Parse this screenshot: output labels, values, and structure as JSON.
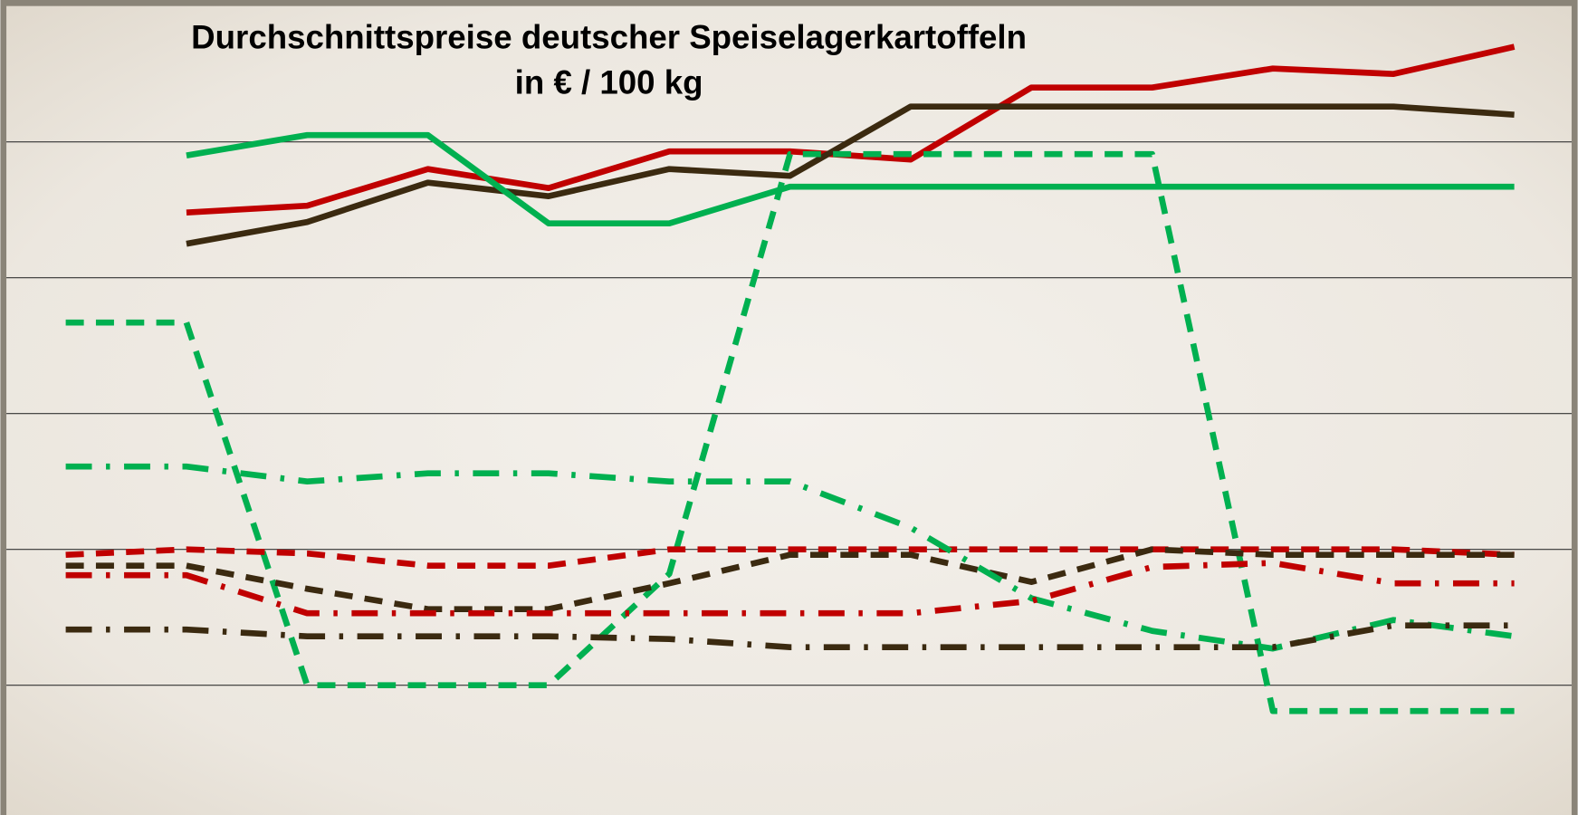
{
  "chart_data": {
    "type": "line",
    "title": "Durchschnittspreise deutscher Speiselagerkartoffeln",
    "subtitle": "in € / 100 kg",
    "categories": [
      null,
      null,
      null,
      null,
      null,
      null,
      null,
      null,
      null,
      null,
      null,
      null,
      null
    ],
    "ylim": [
      0,
      6
    ],
    "yticks": [
      1,
      2,
      3,
      4,
      5
    ],
    "grid": true,
    "series": [
      {
        "color": "#c00000",
        "dash": "solid",
        "values": [
          null,
          4.48,
          4.53,
          4.8,
          4.66,
          4.93,
          4.93,
          4.87,
          5.4,
          5.4,
          5.54,
          5.5,
          5.7
        ]
      },
      {
        "color": "#3b2a10",
        "dash": "solid",
        "values": [
          null,
          4.25,
          4.41,
          4.7,
          4.6,
          4.8,
          4.75,
          5.26,
          5.26,
          5.26,
          5.26,
          5.26,
          5.2
        ]
      },
      {
        "color": "#00b050",
        "dash": "solid",
        "values": [
          null,
          4.9,
          5.05,
          5.05,
          4.4,
          4.4,
          4.67,
          4.67,
          4.67,
          4.67,
          4.67,
          4.67,
          4.67
        ]
      },
      {
        "color": "#00b050",
        "dash": "dash",
        "values": [
          3.67,
          3.67,
          1.0,
          1.0,
          1.0,
          1.82,
          4.91,
          4.91,
          4.91,
          4.91,
          0.81,
          0.81,
          0.81
        ]
      },
      {
        "color": "#c00000",
        "dash": "dash",
        "values": [
          1.96,
          2.0,
          1.97,
          1.88,
          1.88,
          2.0,
          2.0,
          2.0,
          2.0,
          2.0,
          2.0,
          2.0,
          1.96
        ]
      },
      {
        "color": "#3b2a10",
        "dash": "dash",
        "values": [
          1.88,
          1.88,
          1.71,
          1.56,
          1.56,
          1.75,
          1.96,
          1.96,
          1.76,
          2.0,
          1.96,
          1.96,
          1.96
        ]
      },
      {
        "color": "#00b050",
        "dash": "dashdot",
        "values": [
          2.61,
          2.61,
          2.5,
          2.56,
          2.56,
          2.5,
          2.5,
          2.16,
          1.64,
          1.4,
          1.27,
          1.48,
          1.36
        ]
      },
      {
        "color": "#c00000",
        "dash": "dashdot",
        "values": [
          1.81,
          1.81,
          1.53,
          1.53,
          1.53,
          1.53,
          1.53,
          1.53,
          1.62,
          1.87,
          1.9,
          1.75,
          1.75
        ]
      },
      {
        "color": "#3b2a10",
        "dash": "dashdot",
        "values": [
          1.41,
          1.41,
          1.36,
          1.36,
          1.36,
          1.34,
          1.28,
          1.28,
          1.28,
          1.28,
          1.28,
          1.44,
          1.44
        ]
      }
    ]
  }
}
